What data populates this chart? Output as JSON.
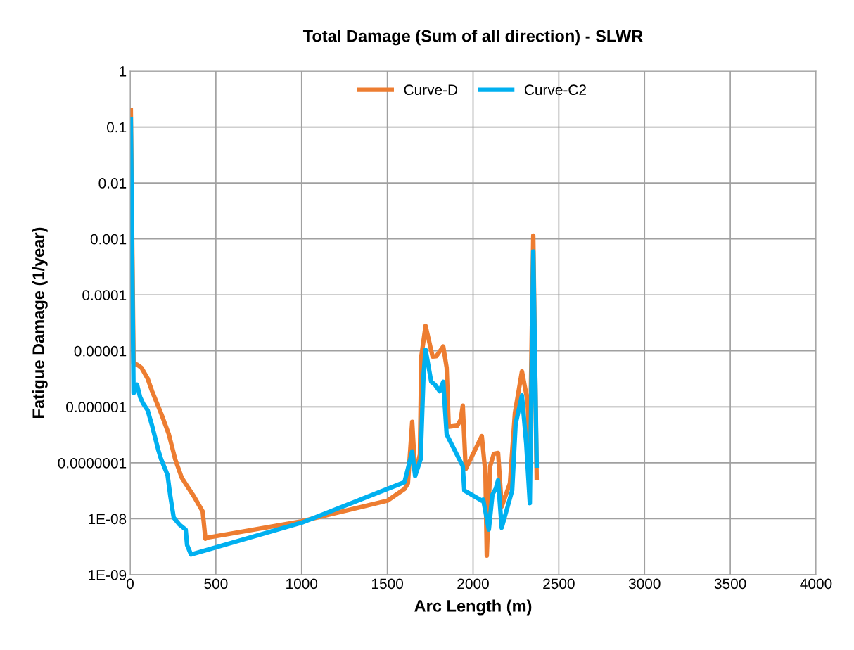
{
  "chart_data": {
    "type": "line",
    "title": "Total Damage (Sum of all direction) - SLWR",
    "xlabel": "Arc Length (m)",
    "ylabel": "Fatigue Damage (1/year)",
    "log": "y",
    "grid": true,
    "legend": "top",
    "marker": "none",
    "line_style": "solid",
    "xlim": [
      0,
      4000
    ],
    "xticks": [
      0,
      500,
      1000,
      1500,
      2000,
      2500,
      3000,
      3500,
      4000
    ],
    "ylim": [
      1e-09,
      1
    ],
    "yticks": [
      {
        "value": 1,
        "label": "1"
      },
      {
        "value": 0.1,
        "label": "0.1"
      },
      {
        "value": 0.01,
        "label": "0.01"
      },
      {
        "value": 0.001,
        "label": "0.001"
      },
      {
        "value": 0.0001,
        "label": "0.0001"
      },
      {
        "value": 1e-05,
        "label": "0.00001"
      },
      {
        "value": 1e-06,
        "label": "0.000001"
      },
      {
        "value": 1e-07,
        "label": "0.0000001"
      },
      {
        "value": 1e-08,
        "label": "1E-08"
      },
      {
        "value": 1e-09,
        "label": "1E-09"
      }
    ],
    "series": [
      {
        "name": "Curve-D",
        "color": "#ed7d31",
        "x": [
          4,
          20,
          40,
          66,
          102,
          128,
          181,
          226,
          263,
          300,
          324,
          369,
          423,
          439,
          451,
          1000,
          1500,
          1600,
          1620,
          1645,
          1662,
          1690,
          1698,
          1723,
          1764,
          1785,
          1826,
          1846,
          1858,
          1908,
          1928,
          1940,
          1957,
          2051,
          2072,
          2080,
          2100,
          2121,
          2146,
          2167,
          2215,
          2244,
          2285,
          2318,
          2331,
          2351,
          2371
        ],
        "values": [
          0.2,
          5.9e-06,
          5.7e-06,
          5e-06,
          3.2e-06,
          1.9e-06,
          7.6e-07,
          3.2e-07,
          1.15e-07,
          5.5e-08,
          4.2e-08,
          2.6e-08,
          1.35e-08,
          4.4e-09,
          4.6e-09,
          9e-09,
          2.1e-08,
          3.4e-08,
          4.3e-08,
          5.4e-07,
          6.5e-08,
          1.4e-07,
          7.9e-06,
          2.8e-05,
          7.9e-06,
          8e-06,
          1.2e-05,
          5e-06,
          4.4e-07,
          4.6e-07,
          5.9e-07,
          1.05e-06,
          7.7e-08,
          3e-07,
          6.5e-08,
          2.2e-09,
          8.7e-08,
          1.45e-07,
          1.5e-07,
          1.65e-08,
          4.3e-08,
          7.8e-07,
          4.3e-06,
          1.26e-06,
          1.15e-07,
          0.00115,
          5.3e-08
        ]
      },
      {
        "name": "Curve-C2",
        "color": "#00b0f0",
        "x": [
          4,
          20,
          40,
          58,
          74,
          102,
          128,
          164,
          181,
          218,
          234,
          254,
          287,
          324,
          332,
          355,
          1000,
          1600,
          1645,
          1662,
          1694,
          1711,
          1723,
          1756,
          1777,
          1805,
          1826,
          1846,
          1940,
          1949,
          2051,
          2059,
          2092,
          2113,
          2133,
          2146,
          2167,
          2228,
          2248,
          2285,
          2310,
          2331,
          2351,
          2371
        ],
        "values": [
          0.135,
          1.75e-06,
          2.5e-06,
          1.5e-06,
          1.17e-06,
          8.7e-07,
          4.6e-07,
          1.7e-07,
          1.15e-07,
          6.1e-08,
          2.6e-08,
          1.05e-08,
          7.9e-09,
          6.4e-09,
          3.4e-09,
          2.3e-09,
          8.5e-09,
          4.5e-08,
          1.6e-07,
          5.8e-08,
          1.15e-07,
          3.7e-06,
          1.05e-05,
          2.8e-06,
          2.5e-06,
          1.9e-06,
          2.8e-06,
          3.2e-07,
          8.7e-08,
          3.2e-08,
          2.1e-08,
          2.2e-08,
          6.4e-09,
          2.7e-08,
          3.5e-08,
          4.9e-08,
          6.9e-09,
          3.2e-08,
          4.9e-07,
          1.6e-06,
          2.2e-07,
          1.9e-08,
          0.0006,
          8.9e-08
        ]
      }
    ]
  }
}
